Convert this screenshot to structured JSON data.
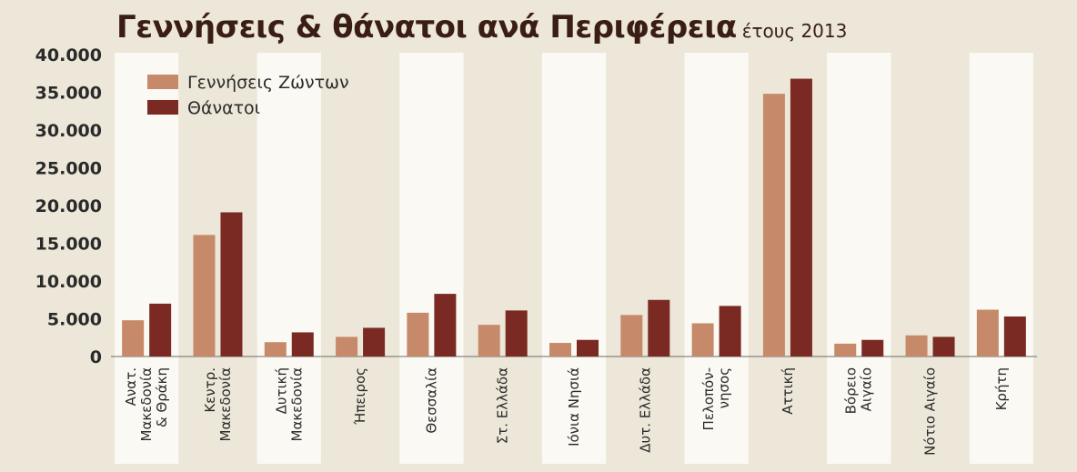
{
  "title": "Γεννήσεις & θάνατοι ανά Περιφέρεια",
  "subtitle": "έτους 2013",
  "colors": {
    "births": "#c68a6a",
    "deaths": "#7a2a22",
    "band": "#fbf9f3",
    "background": "#ece7d8"
  },
  "chart_data": {
    "type": "bar",
    "title": "Γεννήσεις & θάνατοι ανά Περιφέρεια",
    "subtitle": "έτους 2013",
    "xlabel": "",
    "ylabel": "",
    "ylim": [
      0,
      40000
    ],
    "yticks": [
      0,
      5000,
      10000,
      15000,
      20000,
      25000,
      30000,
      35000,
      40000
    ],
    "ytick_labels": [
      "0",
      "5.000",
      "10.000",
      "15.000",
      "20.000",
      "25.000",
      "30.000",
      "35.000",
      "40.000"
    ],
    "legend_position": "top-left",
    "grid": false,
    "categories": [
      [
        "Ανατ.",
        "Μακεδονία",
        "& Θράκη"
      ],
      [
        "Κεντρ.",
        "Μακεδονία"
      ],
      [
        "Δυτική",
        "Μακεδονία"
      ],
      [
        "Ήπειρος"
      ],
      [
        "Θεσσαλία"
      ],
      [
        "Στ. Ελλάδα"
      ],
      [
        "Ιόνια Νησιά"
      ],
      [
        "Δυτ. Ελλάδα"
      ],
      [
        "Πελοπόν-",
        "νησος"
      ],
      [
        "Αττική"
      ],
      [
        "Βόρειο",
        "Αιγαίο"
      ],
      [
        "Νότιο Αιγαίο"
      ],
      [
        "Κρήτη"
      ]
    ],
    "series": [
      {
        "name": "Γεννήσεις Ζώντων",
        "color": "#c68a6a",
        "values": [
          4800,
          16100,
          1900,
          2600,
          5800,
          4200,
          1800,
          5500,
          4400,
          34800,
          1700,
          2800,
          6200
        ]
      },
      {
        "name": "Θάνατοι",
        "color": "#7a2a22",
        "values": [
          7000,
          19100,
          3200,
          3800,
          8300,
          6100,
          2200,
          7500,
          6700,
          36800,
          2200,
          2600,
          5300
        ]
      }
    ]
  }
}
